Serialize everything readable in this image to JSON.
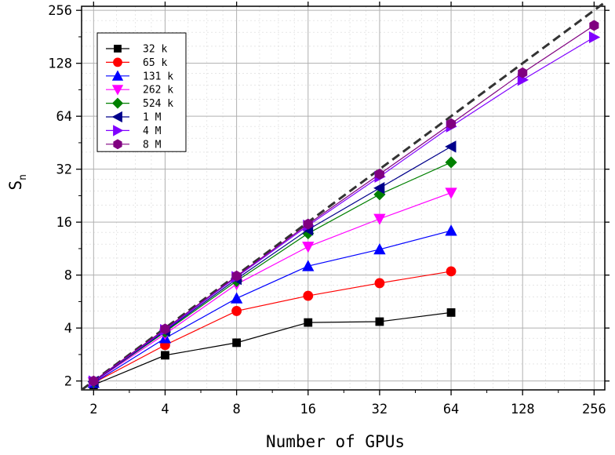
{
  "chart_data": {
    "type": "line",
    "xlabel": "Number of GPUs",
    "ylabel_main": "S",
    "ylabel_sub": "n",
    "x_scale": "log2",
    "y_scale": "log2",
    "xlim": [
      1.78,
      284
    ],
    "ylim": [
      1.78,
      270
    ],
    "x_ticks": [
      2,
      4,
      8,
      16,
      32,
      64,
      128,
      256
    ],
    "y_ticks": [
      2,
      4,
      8,
      16,
      32,
      64,
      128,
      256
    ],
    "x_tick_labels": [
      "2",
      "4",
      "8",
      "16",
      "32",
      "64",
      "128",
      "256"
    ],
    "y_tick_labels": [
      "2",
      "4",
      "8",
      "16",
      "32",
      "64",
      "128",
      "256"
    ],
    "grid": true,
    "legend_position": "top-left",
    "ideal_line": {
      "x": [
        1.78,
        284
      ],
      "y": [
        1.78,
        284
      ],
      "color": "#333333",
      "style": "dashed"
    },
    "series": [
      {
        "name": "32 k",
        "color": "#000000",
        "marker": "square",
        "x": [
          2,
          4,
          8,
          16,
          32,
          64
        ],
        "y": [
          1.9,
          2.8,
          3.3,
          4.3,
          4.35,
          4.9
        ]
      },
      {
        "name": "65 k",
        "color": "#ff0000",
        "marker": "circle",
        "x": [
          2,
          4,
          8,
          16,
          32,
          64
        ],
        "y": [
          1.95,
          3.2,
          5.0,
          6.1,
          7.2,
          8.4
        ]
      },
      {
        "name": "131 k",
        "color": "#0000ff",
        "marker": "triangle-up",
        "x": [
          2,
          4,
          8,
          16,
          32,
          64
        ],
        "y": [
          1.95,
          3.5,
          5.9,
          9.0,
          11.2,
          14.3
        ]
      },
      {
        "name": "262 k",
        "color": "#ff00ff",
        "marker": "triangle-down",
        "x": [
          2,
          4,
          8,
          16,
          32,
          64
        ],
        "y": [
          1.97,
          3.7,
          7.1,
          11.6,
          16.7,
          23.5
        ]
      },
      {
        "name": "524 k",
        "color": "#008000",
        "marker": "diamond",
        "x": [
          2,
          4,
          8,
          16,
          32,
          64
        ],
        "y": [
          1.98,
          3.8,
          7.4,
          13.8,
          23.0,
          35.0
        ]
      },
      {
        "name": "1 M",
        "color": "#00008b",
        "marker": "triangle-left",
        "x": [
          2,
          4,
          8,
          16,
          32,
          64
        ],
        "y": [
          1.98,
          3.85,
          7.6,
          14.5,
          25.0,
          43.0
        ]
      },
      {
        "name": "4 M",
        "color": "#8000ff",
        "marker": "triangle-right",
        "x": [
          2,
          4,
          8,
          16,
          32,
          64,
          128,
          256
        ],
        "y": [
          1.99,
          3.9,
          7.8,
          15.3,
          29.0,
          56.0,
          103,
          180
        ]
      },
      {
        "name": "8 M",
        "color": "#800080",
        "marker": "hexagon",
        "x": [
          2,
          4,
          8,
          16,
          32,
          64,
          128,
          256
        ],
        "y": [
          2.0,
          3.95,
          7.9,
          15.6,
          30.0,
          58.0,
          113,
          210
        ]
      }
    ]
  }
}
